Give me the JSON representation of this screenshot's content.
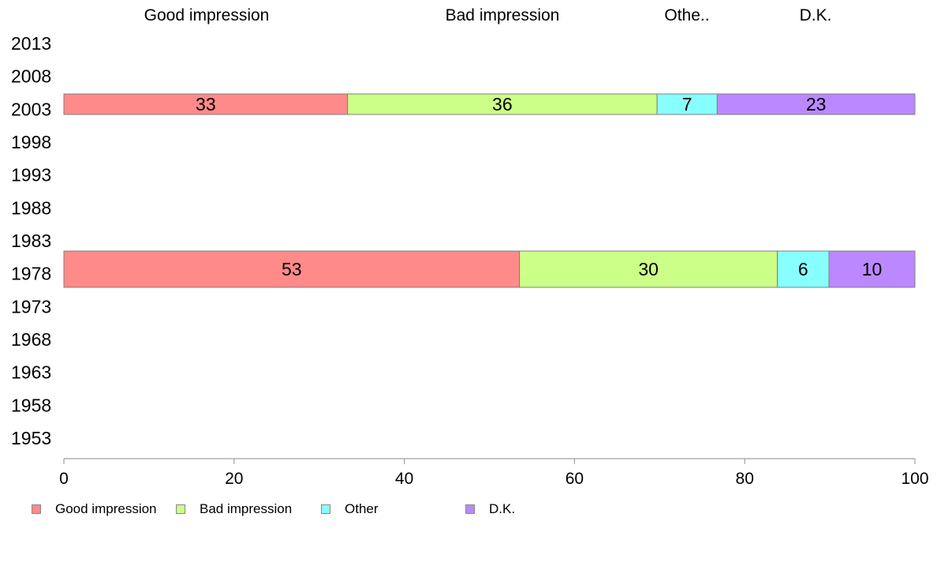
{
  "chart_data": {
    "type": "bar",
    "orientation": "horizontal",
    "stacked": true,
    "title": "",
    "xlabel": "",
    "ylabel": "",
    "xlim": [
      0,
      100
    ],
    "x_ticks": [
      "0",
      "20",
      "40",
      "60",
      "80",
      "100"
    ],
    "categories": [
      "2013",
      "2008",
      "2003",
      "1998",
      "1993",
      "1988",
      "1983",
      "1978",
      "1973",
      "1968",
      "1963",
      "1958",
      "1953"
    ],
    "column_headers": [
      "Good impression",
      "Bad impression",
      "Othe..",
      "D.K."
    ],
    "series": [
      {
        "name": "Good impression",
        "color": "#FF8A8A",
        "values": [
          null,
          null,
          33,
          null,
          null,
          null,
          null,
          53,
          null,
          null,
          null,
          null,
          null
        ]
      },
      {
        "name": "Bad impression",
        "color": "#CCFF88",
        "values": [
          null,
          null,
          36,
          null,
          null,
          null,
          null,
          30,
          null,
          null,
          null,
          null,
          null
        ]
      },
      {
        "name": "Other",
        "color": "#88FFFF",
        "values": [
          null,
          null,
          7,
          null,
          null,
          null,
          null,
          6,
          null,
          null,
          null,
          null,
          null
        ]
      },
      {
        "name": "D.K.",
        "color": "#BB88FF",
        "values": [
          null,
          null,
          23,
          null,
          null,
          null,
          null,
          10,
          null,
          null,
          null,
          null,
          null
        ]
      }
    ],
    "legend_position": "bottom-left",
    "grid": false
  }
}
